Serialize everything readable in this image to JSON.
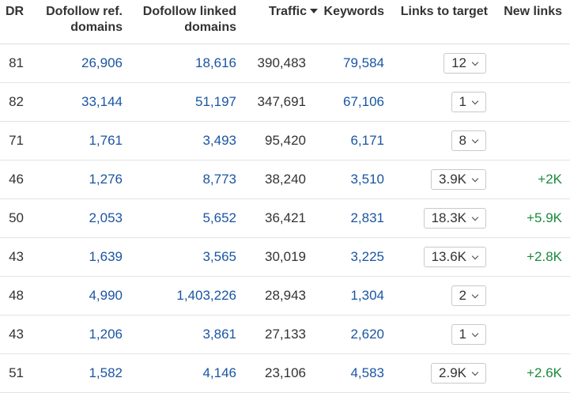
{
  "headers": {
    "dr": "DR",
    "ref_line1": "Dofollow ref.",
    "ref_line2": "domains",
    "linked_line1": "Dofollow linked",
    "linked_line2": "domains",
    "traffic": "Traffic",
    "keywords": "Keywords",
    "links_to_target": "Links to target",
    "new_links": "New links"
  },
  "sort_icon": "caret-down-icon",
  "colors": {
    "link": "#1a55a3",
    "positive": "#1a8a3b",
    "text": "#333333"
  },
  "rows": [
    {
      "dr": "81",
      "ref_domains": "26,906",
      "linked_domains": "18,616",
      "traffic": "390,483",
      "keywords": "79,584",
      "links_to_target": "12",
      "new_links": ""
    },
    {
      "dr": "82",
      "ref_domains": "33,144",
      "linked_domains": "51,197",
      "traffic": "347,691",
      "keywords": "67,106",
      "links_to_target": "1",
      "new_links": ""
    },
    {
      "dr": "71",
      "ref_domains": "1,761",
      "linked_domains": "3,493",
      "traffic": "95,420",
      "keywords": "6,171",
      "links_to_target": "8",
      "new_links": ""
    },
    {
      "dr": "46",
      "ref_domains": "1,276",
      "linked_domains": "8,773",
      "traffic": "38,240",
      "keywords": "3,510",
      "links_to_target": "3.9K",
      "new_links": "+2K"
    },
    {
      "dr": "50",
      "ref_domains": "2,053",
      "linked_domains": "5,652",
      "traffic": "36,421",
      "keywords": "2,831",
      "links_to_target": "18.3K",
      "new_links": "+5.9K"
    },
    {
      "dr": "43",
      "ref_domains": "1,639",
      "linked_domains": "3,565",
      "traffic": "30,019",
      "keywords": "3,225",
      "links_to_target": "13.6K",
      "new_links": "+2.8K"
    },
    {
      "dr": "48",
      "ref_domains": "4,990",
      "linked_domains": "1,403,226",
      "traffic": "28,943",
      "keywords": "1,304",
      "links_to_target": "2",
      "new_links": ""
    },
    {
      "dr": "43",
      "ref_domains": "1,206",
      "linked_domains": "3,861",
      "traffic": "27,133",
      "keywords": "2,620",
      "links_to_target": "1",
      "new_links": ""
    },
    {
      "dr": "51",
      "ref_domains": "1,582",
      "linked_domains": "4,146",
      "traffic": "23,106",
      "keywords": "4,583",
      "links_to_target": "2.9K",
      "new_links": "+2.6K"
    }
  ]
}
